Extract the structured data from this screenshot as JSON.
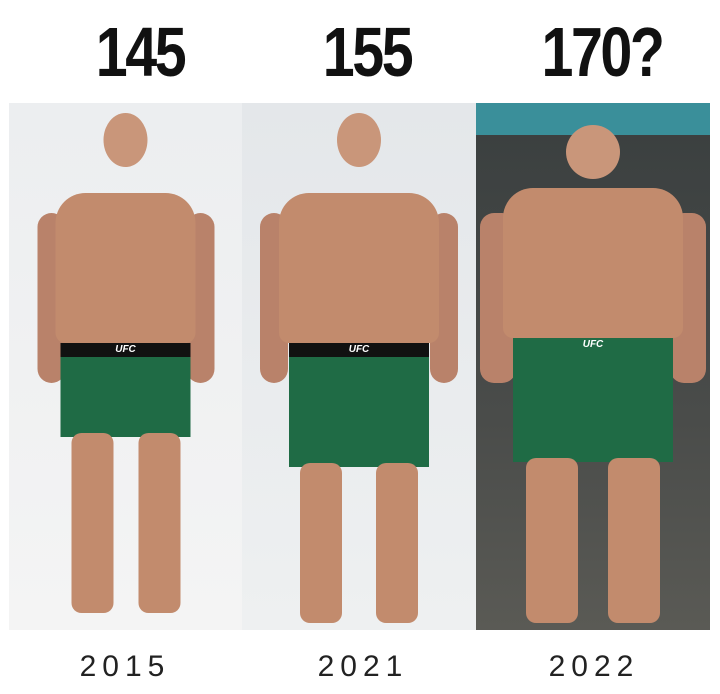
{
  "weights": [
    "145",
    "155",
    "170?"
  ],
  "years": [
    "2015",
    "2021",
    "2022"
  ],
  "shorts_logo": "UFC",
  "colors": {
    "shorts": "#1f6b45",
    "gym_accent": "#3a8f9a"
  }
}
